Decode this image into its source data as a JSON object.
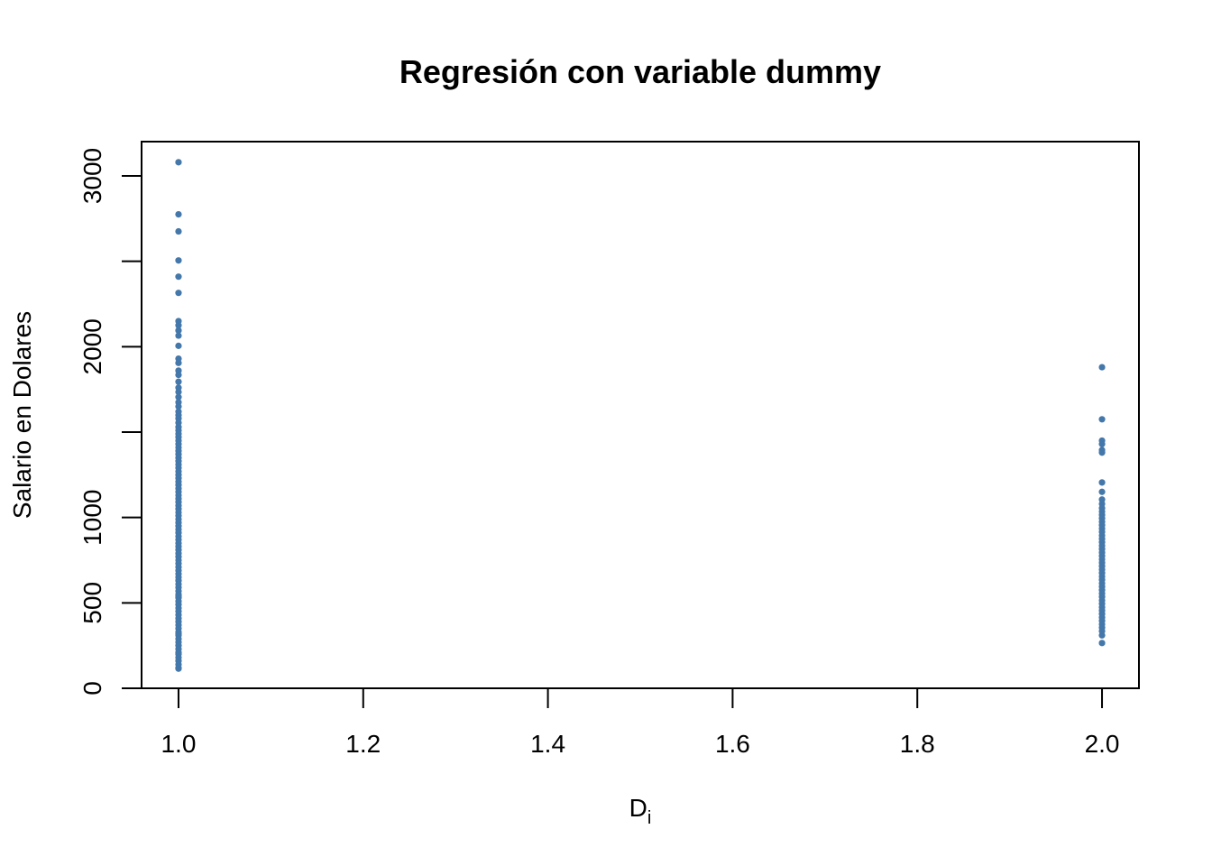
{
  "chart_data": {
    "type": "scatter",
    "title": "Regresión con variable dummy",
    "xlabel": "D",
    "xlabel_subscript": "i",
    "ylabel": "Salario en Dolares",
    "xlim": [
      0.96,
      2.04
    ],
    "ylim": [
      0,
      3200
    ],
    "x_ticks": [
      1.0,
      1.2,
      1.4,
      1.6,
      1.8,
      2.0
    ],
    "x_tick_labels": [
      "1.0",
      "1.2",
      "1.4",
      "1.6",
      "1.8",
      "2.0"
    ],
    "y_ticks": [
      0,
      500,
      1000,
      1500,
      2000,
      2500,
      3000
    ],
    "y_tick_labels": [
      "0",
      "500",
      "1000",
      "",
      "2000",
      "",
      "3000"
    ],
    "grid": false,
    "point_color": "#4477aa",
    "series": [
      {
        "x": [
          1,
          1,
          1,
          1,
          1,
          1,
          1,
          1,
          1,
          1,
          1,
          1,
          1,
          1,
          1,
          1,
          1,
          1,
          1,
          1,
          1,
          1,
          1,
          1,
          1,
          1,
          1,
          1,
          1,
          1,
          1,
          1,
          1,
          1,
          1,
          1,
          1,
          1,
          1,
          1,
          1,
          1,
          1,
          1,
          1,
          1,
          1,
          1,
          1,
          1,
          1,
          1,
          1,
          1,
          1,
          1,
          1,
          1,
          1,
          1,
          1,
          1,
          1,
          1,
          1,
          1,
          1,
          1,
          1,
          1,
          1,
          1,
          1,
          1,
          1,
          1,
          1,
          1,
          1,
          1,
          1,
          1,
          1,
          1,
          1,
          1,
          1,
          1,
          1,
          1,
          1,
          1,
          1,
          1,
          1,
          1,
          1,
          1,
          1,
          1
        ],
        "y": [
          3080,
          2775,
          2675,
          2505,
          2410,
          2315,
          2150,
          2125,
          2095,
          2065,
          2005,
          1930,
          1905,
          1860,
          1835,
          1795,
          1760,
          1735,
          1705,
          1675,
          1650,
          1620,
          1600,
          1580,
          1555,
          1530,
          1510,
          1490,
          1470,
          1450,
          1430,
          1410,
          1390,
          1370,
          1350,
          1330,
          1310,
          1290,
          1270,
          1250,
          1230,
          1210,
          1190,
          1170,
          1150,
          1130,
          1110,
          1090,
          1070,
          1050,
          1030,
          1010,
          990,
          970,
          950,
          930,
          910,
          890,
          870,
          850,
          830,
          810,
          790,
          770,
          750,
          730,
          710,
          690,
          670,
          650,
          630,
          610,
          590,
          570,
          550,
          530,
          510,
          490,
          470,
          450,
          430,
          410,
          390,
          370,
          350,
          330,
          310,
          290,
          270,
          250,
          230,
          210,
          200,
          180,
          160,
          140,
          120,
          115,
          320,
          540
        ]
      },
      {
        "x": [
          2,
          2,
          2,
          2,
          2,
          2,
          2,
          2,
          2,
          2,
          2,
          2,
          2,
          2,
          2,
          2,
          2,
          2,
          2,
          2,
          2,
          2,
          2,
          2,
          2,
          2,
          2,
          2,
          2,
          2,
          2,
          2,
          2,
          2,
          2,
          2,
          2,
          2,
          2,
          2,
          2,
          2,
          2,
          2,
          2,
          2,
          2,
          2,
          2
        ],
        "y": [
          1880,
          1575,
          1450,
          1430,
          1395,
          1380,
          1205,
          1150,
          1105,
          1080,
          1055,
          1035,
          1015,
          995,
          975,
          955,
          935,
          915,
          895,
          875,
          855,
          835,
          815,
          795,
          775,
          755,
          735,
          715,
          695,
          675,
          655,
          635,
          615,
          595,
          575,
          555,
          535,
          515,
          495,
          475,
          455,
          435,
          415,
          395,
          375,
          355,
          335,
          310,
          265
        ]
      }
    ]
  }
}
